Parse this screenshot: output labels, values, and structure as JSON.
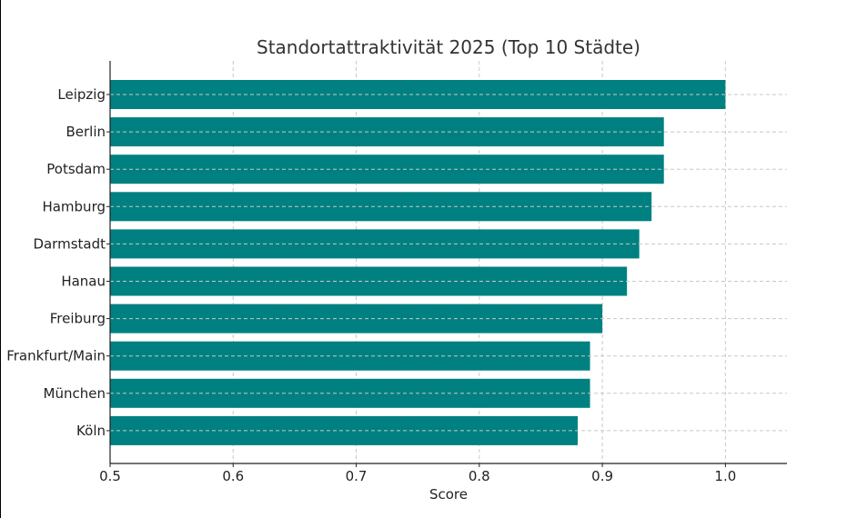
{
  "chart_data": {
    "type": "bar",
    "orientation": "horizontal",
    "title": "Standortattraktivität 2025 (Top 10 Städte)",
    "xlabel": "Score",
    "ylabel": "",
    "categories": [
      "Leipzig",
      "Berlin",
      "Potsdam",
      "Hamburg",
      "Darmstadt",
      "Hanau",
      "Freiburg",
      "Frankfurt/Main",
      "München",
      "Köln"
    ],
    "values": [
      1.0,
      0.95,
      0.95,
      0.94,
      0.93,
      0.92,
      0.9,
      0.89,
      0.89,
      0.88
    ],
    "xlim": [
      0.5,
      1.05
    ],
    "xticks": [
      "0.5",
      "0.6",
      "0.7",
      "0.8",
      "0.9",
      "1.0"
    ],
    "grid": true,
    "bar_color": "#008080",
    "grid_color": "#c8c8c8"
  }
}
